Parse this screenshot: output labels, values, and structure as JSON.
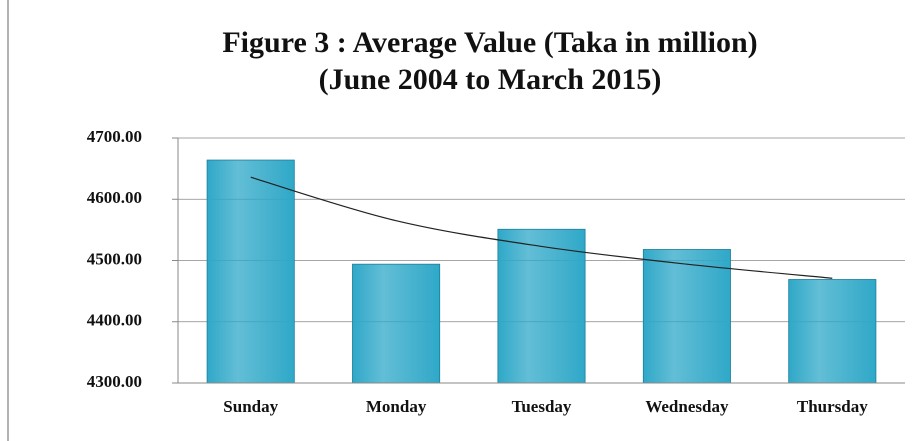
{
  "chart_data": {
    "type": "bar",
    "title": "Figure 3 : Average Value (Taka in million)",
    "subtitle": "(June 2004 to March 2015)",
    "categories": [
      "Sunday",
      "Monday",
      "Tuesday",
      "Wednesday",
      "Thursday"
    ],
    "values": [
      4664,
      4494,
      4551,
      4518,
      4469
    ],
    "trend_values": [
      4636,
      4565,
      4523,
      4494,
      4471
    ],
    "color": "#2fa8c8",
    "trend_color": "#222222",
    "ylim": [
      4300,
      4700
    ],
    "yticks": [
      {
        "value": 4300,
        "label": "4300.00"
      },
      {
        "value": 4400,
        "label": "4400.00"
      },
      {
        "value": 4500,
        "label": "4500.00"
      },
      {
        "value": 4600,
        "label": "4600.00"
      },
      {
        "value": 4700,
        "label": "4700.00"
      }
    ],
    "grid": true
  }
}
